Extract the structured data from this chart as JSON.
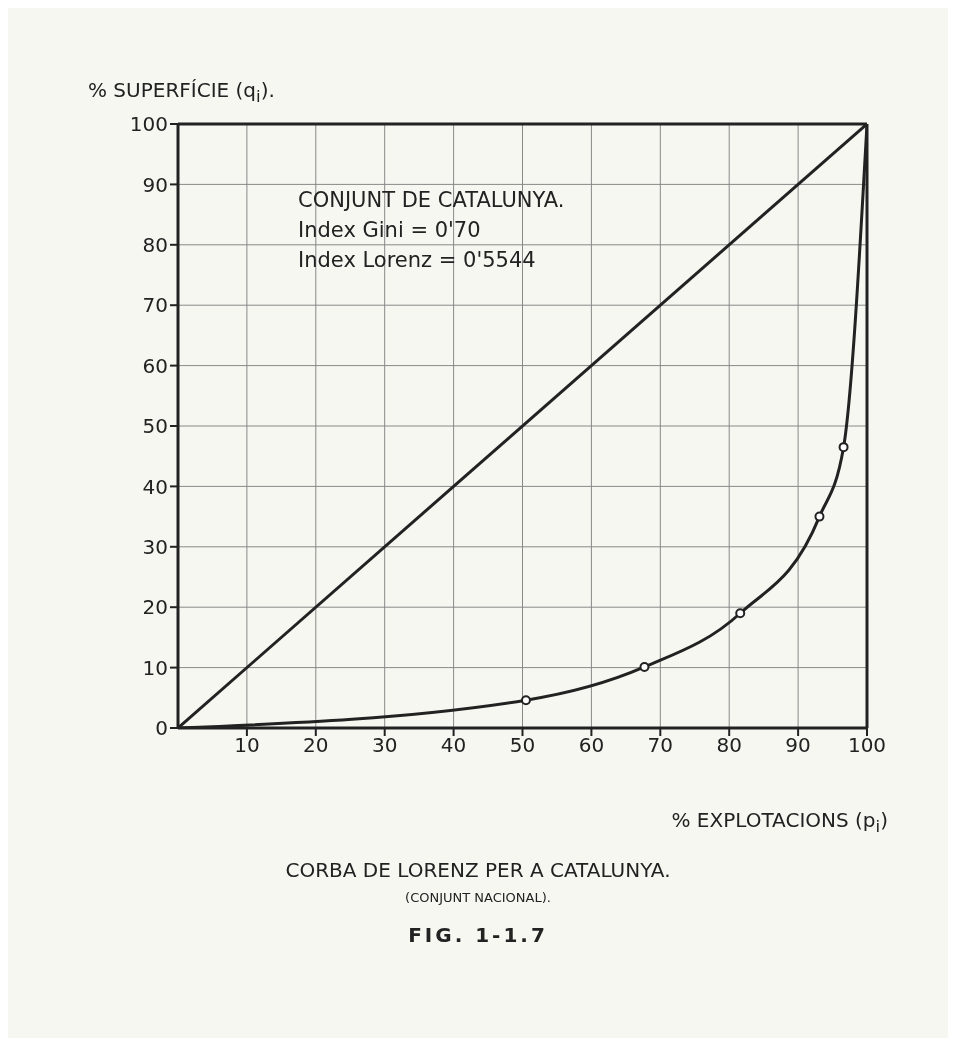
{
  "chart_data": {
    "type": "line",
    "title": "CORBA DE LORENZ PER A CATALUNYA.",
    "subtitle": "(CONJUNT NACIONAL).",
    "xlabel": "% EXPLOTACIONS (p$_{i}$)",
    "ylabel": "% SUPERFÍCIE (q$_{i}$).",
    "annotations": [
      "CONJUNT DE CATALUNYA.",
      "Index Gini = 0'70",
      "Index Lorenz = 0'5544",
      "FIG. 1-1.7"
    ],
    "series": [
      {
        "color": "#222222",
        "x": [
          0,
          100
        ],
        "values": [
          0,
          100
        ],
        "marker": "none"
      },
      {
        "color": "#222222",
        "x": [
          0,
          50.5,
          67.7,
          81.6,
          93.1,
          96.6,
          100
        ],
        "values": [
          0,
          4.6,
          10.1,
          19,
          35,
          46.5,
          100
        ],
        "marker": "circle"
      }
    ],
    "xlim": [
      0,
      100
    ],
    "xticks": [
      10,
      20,
      30,
      40,
      50,
      60,
      70,
      80,
      90,
      100
    ],
    "ylim": [
      0,
      100
    ],
    "yticks": [
      0,
      10,
      20,
      30,
      40,
      50,
      60,
      70,
      80,
      90,
      100
    ],
    "grid": true,
    "line_style": "solid"
  }
}
